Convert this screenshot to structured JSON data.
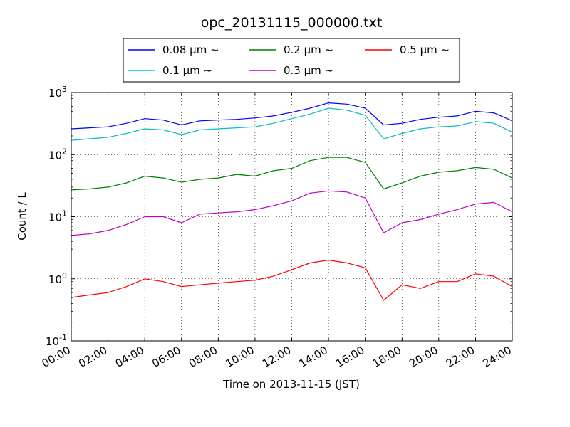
{
  "chart_data": {
    "type": "line",
    "title": "opc_20131115_000000.txt",
    "xlabel": "Time on 2013-11-15 (JST)",
    "ylabel": "Count / L",
    "yscale": "log",
    "ylim": [
      0.1,
      1000
    ],
    "xlim": [
      0,
      24
    ],
    "x_tick_labels": [
      "00:00",
      "02:00",
      "04:00",
      "06:00",
      "08:00",
      "10:00",
      "12:00",
      "14:00",
      "16:00",
      "18:00",
      "20:00",
      "22:00",
      "24:00"
    ],
    "y_tick_labels": [
      {
        "base": "10",
        "exp": "-1"
      },
      {
        "base": "10",
        "exp": "0"
      },
      {
        "base": "10",
        "exp": "1"
      },
      {
        "base": "10",
        "exp": "2"
      },
      {
        "base": "10",
        "exp": "3"
      }
    ],
    "grid": true,
    "legend_placement": "top-center, above plot",
    "x_hours": [
      0,
      1,
      2,
      3,
      4,
      5,
      6,
      7,
      8,
      9,
      10,
      11,
      12,
      13,
      14,
      15,
      16,
      17,
      18,
      19,
      20,
      21,
      22,
      23,
      24
    ],
    "series": [
      {
        "name": "0.08 μm ~",
        "color": "#0000ff",
        "values": [
          260,
          270,
          280,
          320,
          380,
          360,
          300,
          350,
          360,
          370,
          390,
          420,
          480,
          560,
          680,
          650,
          560,
          300,
          320,
          370,
          400,
          420,
          500,
          470,
          350
        ]
      },
      {
        "name": "0.1 μm ~",
        "color": "#00bfbf",
        "values": [
          170,
          180,
          190,
          220,
          260,
          250,
          210,
          250,
          260,
          270,
          280,
          320,
          380,
          450,
          560,
          520,
          430,
          180,
          220,
          260,
          280,
          290,
          340,
          320,
          230
        ]
      },
      {
        "name": "0.2 μm ~",
        "color": "#008000",
        "values": [
          27,
          28,
          30,
          35,
          45,
          42,
          36,
          40,
          42,
          48,
          45,
          55,
          60,
          80,
          90,
          90,
          75,
          28,
          35,
          45,
          52,
          55,
          62,
          58,
          42
        ]
      },
      {
        "name": "0.3 μm ~",
        "color": "#bf00bf",
        "values": [
          5,
          5.3,
          6,
          7.5,
          10,
          10,
          8,
          11,
          11.5,
          12,
          13,
          15,
          18,
          24,
          26,
          25,
          20,
          5.5,
          8,
          9,
          11,
          13,
          16,
          17,
          12
        ]
      },
      {
        "name": "0.5 μm ~",
        "color": "#ff0000",
        "values": [
          0.5,
          0.55,
          0.6,
          0.75,
          1.0,
          0.9,
          0.75,
          0.8,
          0.85,
          0.9,
          0.95,
          1.1,
          1.4,
          1.8,
          2.0,
          1.8,
          1.5,
          0.45,
          0.8,
          0.7,
          0.9,
          0.9,
          1.2,
          1.1,
          0.75
        ]
      }
    ]
  }
}
